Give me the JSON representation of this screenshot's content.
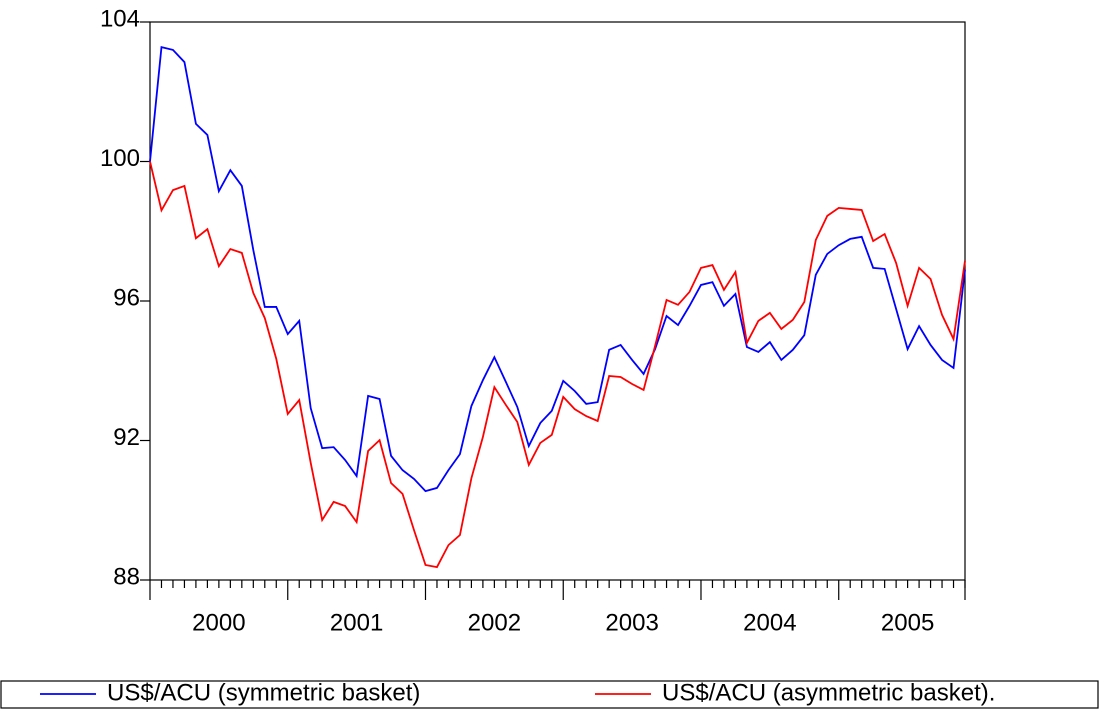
{
  "chart_data": {
    "type": "line",
    "categories": [
      null,
      null,
      null,
      null,
      null,
      null,
      "2000",
      null,
      null,
      null,
      null,
      null,
      null,
      null,
      null,
      null,
      null,
      null,
      "2001",
      null,
      null,
      null,
      null,
      null,
      null,
      null,
      null,
      null,
      null,
      null,
      "2002",
      null,
      null,
      null,
      null,
      null,
      null,
      null,
      null,
      null,
      null,
      null,
      "2003",
      null,
      null,
      null,
      null,
      null,
      null,
      null,
      null,
      null,
      null,
      null,
      "2004",
      null,
      null,
      null,
      null,
      null,
      null,
      null,
      null,
      null,
      null,
      null,
      "2005",
      null,
      null,
      null,
      null,
      null
    ],
    "series": [
      {
        "name": "US$/ACU (symmetric basket)",
        "color": "#0000ff",
        "values": [
          100.0,
          103.28,
          103.2,
          102.85,
          101.08,
          100.76,
          99.15,
          99.75,
          99.3,
          97.46,
          95.83,
          95.83,
          95.05,
          95.43,
          92.93,
          91.78,
          91.81,
          91.44,
          90.98,
          93.28,
          93.19,
          91.56,
          91.15,
          90.9,
          90.55,
          90.64,
          91.15,
          91.61,
          92.99,
          93.73,
          94.39,
          93.68,
          92.96,
          91.84,
          92.5,
          92.85,
          93.71,
          93.42,
          93.05,
          93.1,
          94.6,
          94.74,
          94.31,
          93.91,
          94.62,
          95.57,
          95.31,
          95.86,
          96.46,
          96.54,
          95.86,
          96.2,
          94.68,
          94.54,
          94.82,
          94.31,
          94.6,
          95.02,
          96.75,
          97.35,
          97.6,
          97.78,
          97.84,
          96.95,
          96.92,
          95.77,
          94.62,
          95.28,
          94.74,
          94.31,
          94.08,
          96.9
        ]
      },
      {
        "name": "US$/ACU (asymmetric basket).",
        "color": "#ff0000",
        "values": [
          100.0,
          98.6,
          99.18,
          99.3,
          97.8,
          98.06,
          97.0,
          97.49,
          97.38,
          96.23,
          95.51,
          94.34,
          92.76,
          93.16,
          91.36,
          89.72,
          90.24,
          90.12,
          89.66,
          91.7,
          92.01,
          90.78,
          90.47,
          89.43,
          88.43,
          88.37,
          89.0,
          89.29,
          90.92,
          92.1,
          93.53,
          93.02,
          92.53,
          91.3,
          91.93,
          92.16,
          93.25,
          92.9,
          92.7,
          92.56,
          93.85,
          93.82,
          93.62,
          93.45,
          94.71,
          96.03,
          95.89,
          96.26,
          96.95,
          97.03,
          96.32,
          96.83,
          94.8,
          95.43,
          95.66,
          95.2,
          95.46,
          95.97,
          97.75,
          98.44,
          98.67,
          98.64,
          98.61,
          97.72,
          97.92,
          97.09,
          95.86,
          96.95,
          96.63,
          95.6,
          94.91,
          97.15
        ]
      }
    ],
    "ylim": [
      88,
      104
    ],
    "yticks": [
      88,
      92,
      96,
      100,
      104
    ],
    "grid": false,
    "legend": "bottom"
  }
}
